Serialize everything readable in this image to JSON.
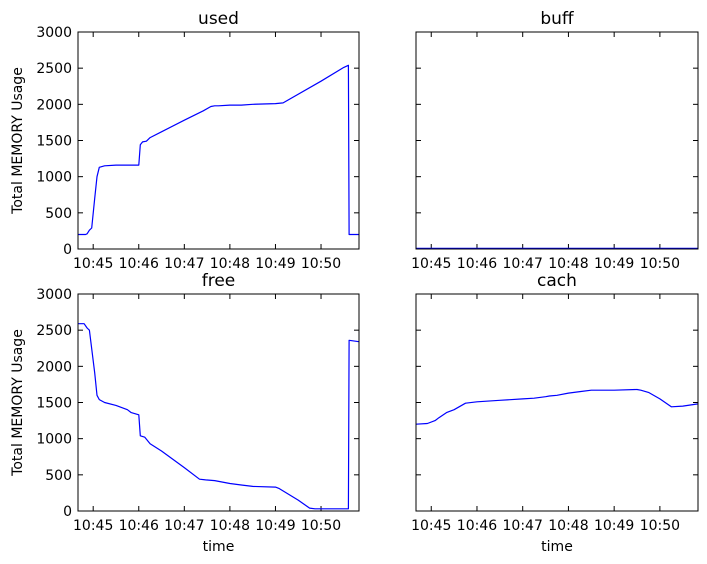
{
  "chart_data": [
    {
      "type": "line",
      "title": "used",
      "xlabel": "",
      "ylabel": "Total MEMORY Usage",
      "color": "#0000ff",
      "xlim": [
        "10:44:40",
        "10:50:50"
      ],
      "ylim": [
        0,
        3000
      ],
      "xticks": [
        "10:45",
        "10:46",
        "10:47",
        "10:48",
        "10:49",
        "10:50"
      ],
      "yticks": [
        "0",
        "500",
        "1000",
        "1500",
        "2000",
        "2500",
        "3000"
      ],
      "show_yticklabels": true,
      "show_xlabel": false,
      "grid": false,
      "series": [
        {
          "x": [
            "10:44:40",
            "10:44:50",
            "10:44:52",
            "10:44:55",
            "10:44:58",
            "10:45:02",
            "10:45:05",
            "10:45:08",
            "10:45:15",
            "10:45:30",
            "10:45:50",
            "10:46:00",
            "10:46:02",
            "10:46:05",
            "10:46:10",
            "10:46:15",
            "10:46:30",
            "10:47:00",
            "10:47:25",
            "10:47:35",
            "10:47:40",
            "10:47:45",
            "10:48:00",
            "10:48:15",
            "10:48:30",
            "10:49:00",
            "10:49:10",
            "10:50:00",
            "10:50:30",
            "10:50:36",
            "10:50:37",
            "10:50:50"
          ],
          "y": [
            200,
            200,
            210,
            260,
            290,
            700,
            1000,
            1130,
            1150,
            1160,
            1160,
            1160,
            1440,
            1480,
            1490,
            1540,
            1620,
            1780,
            1910,
            1970,
            1980,
            1980,
            1990,
            1990,
            2000,
            2010,
            2020,
            2320,
            2510,
            2540,
            200,
            200
          ]
        }
      ]
    },
    {
      "type": "line",
      "title": "buff",
      "xlabel": "",
      "ylabel": "",
      "color": "#0000ff",
      "xlim": [
        "10:44:40",
        "10:50:50"
      ],
      "ylim": [
        0,
        3000
      ],
      "xticks": [
        "10:45",
        "10:46",
        "10:47",
        "10:48",
        "10:49",
        "10:50"
      ],
      "yticks": [],
      "show_yticklabels": false,
      "show_xlabel": false,
      "grid": false,
      "series": [
        {
          "x": [
            "10:44:40",
            "10:50:50"
          ],
          "y": [
            10,
            10
          ]
        }
      ]
    },
    {
      "type": "line",
      "title": "free",
      "xlabel": "time",
      "ylabel": "Total MEMORY Usage",
      "color": "#0000ff",
      "xlim": [
        "10:44:40",
        "10:50:50"
      ],
      "ylim": [
        0,
        3000
      ],
      "xticks": [
        "10:45",
        "10:46",
        "10:47",
        "10:48",
        "10:49",
        "10:50"
      ],
      "yticks": [
        "0",
        "500",
        "1000",
        "1500",
        "2000",
        "2500",
        "3000"
      ],
      "show_yticklabels": true,
      "show_xlabel": true,
      "grid": false,
      "series": [
        {
          "x": [
            "10:44:40",
            "10:44:48",
            "10:44:52",
            "10:44:55",
            "10:45:02",
            "10:45:05",
            "10:45:08",
            "10:45:15",
            "10:45:30",
            "10:45:45",
            "10:45:50",
            "10:46:00",
            "10:46:02",
            "10:46:08",
            "10:46:15",
            "10:46:30",
            "10:47:00",
            "10:47:20",
            "10:47:28",
            "10:47:40",
            "10:48:00",
            "10:48:15",
            "10:48:30",
            "10:49:00",
            "10:49:05",
            "10:49:30",
            "10:49:45",
            "10:49:52",
            "10:50:00",
            "10:50:36",
            "10:50:37",
            "10:50:50"
          ],
          "y": [
            2590,
            2590,
            2530,
            2500,
            1910,
            1600,
            1540,
            1500,
            1460,
            1400,
            1360,
            1330,
            1040,
            1020,
            930,
            830,
            600,
            440,
            430,
            420,
            380,
            360,
            340,
            330,
            310,
            150,
            40,
            30,
            30,
            30,
            2360,
            2340
          ]
        }
      ]
    },
    {
      "type": "line",
      "title": "cach",
      "xlabel": "time",
      "ylabel": "",
      "color": "#0000ff",
      "xlim": [
        "10:44:40",
        "10:50:50"
      ],
      "ylim": [
        0,
        3000
      ],
      "xticks": [
        "10:45",
        "10:46",
        "10:47",
        "10:48",
        "10:49",
        "10:50"
      ],
      "yticks": [],
      "show_yticklabels": false,
      "show_xlabel": true,
      "grid": false,
      "series": [
        {
          "x": [
            "10:44:40",
            "10:44:55",
            "10:45:05",
            "10:45:10",
            "10:45:20",
            "10:45:30",
            "10:45:45",
            "10:46:00",
            "10:46:30",
            "10:47:00",
            "10:47:15",
            "10:47:30",
            "10:47:35",
            "10:47:45",
            "10:48:00",
            "10:48:15",
            "10:48:30",
            "10:49:00",
            "10:49:30",
            "10:49:35",
            "10:49:45",
            "10:50:00",
            "10:50:15",
            "10:50:30",
            "10:50:50"
          ],
          "y": [
            1200,
            1210,
            1250,
            1290,
            1360,
            1400,
            1490,
            1510,
            1530,
            1550,
            1560,
            1580,
            1590,
            1600,
            1630,
            1650,
            1670,
            1670,
            1680,
            1670,
            1640,
            1550,
            1440,
            1450,
            1480
          ]
        }
      ]
    }
  ]
}
